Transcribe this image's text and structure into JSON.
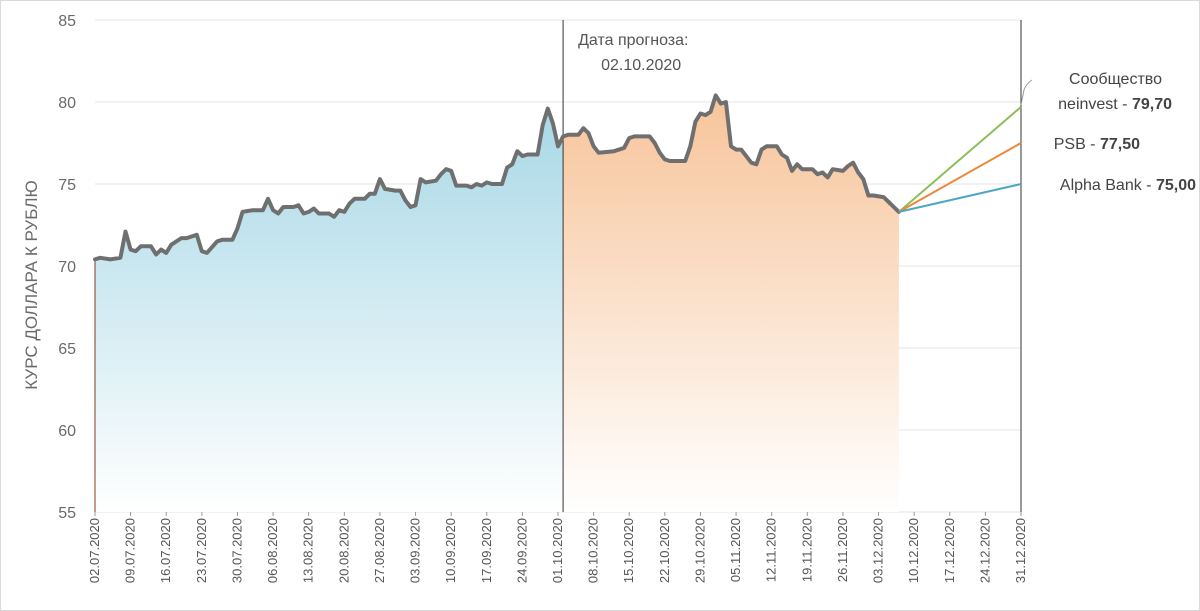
{
  "chart_data": {
    "type": "line",
    "ylabel": "КУРС ДОЛЛАРА К РУБЛЮ",
    "ylim": [
      55,
      85
    ],
    "yticks": [
      "55",
      "60",
      "65",
      "70",
      "75",
      "80",
      "85"
    ],
    "grid": "horizontal",
    "x_tick_labels": [
      "02.07.2020",
      "09.07.2020",
      "16.07.2020",
      "23.07.2020",
      "30.07.2020",
      "06.08.2020",
      "13.08.2020",
      "20.08.2020",
      "27.08.2020",
      "03.09.2020",
      "10.09.2020",
      "17.09.2020",
      "24.09.2020",
      "01.10.2020",
      "08.10.2020",
      "15.10.2020",
      "22.10.2020",
      "29.10.2020",
      "05.11.2020",
      "12.11.2020",
      "19.11.2020",
      "26.11.2020",
      "03.12.2020",
      "10.12.2020",
      "17.12.2020",
      "24.12.2020",
      "31.12.2020"
    ],
    "forecast_annotation": {
      "line1": "Дата прогноза:",
      "line2": "02.10.2020",
      "date": "02.10.2020"
    },
    "colors": {
      "history_line": "#6f6f6f",
      "before_fill_top": "#a8d8e6",
      "after_fill_top": "#f7c49a",
      "community": "#8cbf5a",
      "psb": "#e8893b",
      "alpha": "#4ea7c2"
    },
    "series": [
      {
        "name": "history",
        "points": [
          [
            "02.07.2020",
            70.4
          ],
          [
            "03.07.2020",
            70.5
          ],
          [
            "05.07.2020",
            70.4
          ],
          [
            "07.07.2020",
            70.5
          ],
          [
            "08.07.2020",
            72.1
          ],
          [
            "09.07.2020",
            71.0
          ],
          [
            "10.07.2020",
            70.9
          ],
          [
            "11.07.2020",
            71.2
          ],
          [
            "13.07.2020",
            71.2
          ],
          [
            "14.07.2020",
            70.7
          ],
          [
            "15.07.2020",
            71.0
          ],
          [
            "16.07.2020",
            70.8
          ],
          [
            "17.07.2020",
            71.3
          ],
          [
            "19.07.2020",
            71.7
          ],
          [
            "20.07.2020",
            71.7
          ],
          [
            "22.07.2020",
            71.9
          ],
          [
            "23.07.2020",
            70.9
          ],
          [
            "24.07.2020",
            70.8
          ],
          [
            "26.07.2020",
            71.5
          ],
          [
            "27.07.2020",
            71.6
          ],
          [
            "29.07.2020",
            71.6
          ],
          [
            "30.07.2020",
            72.3
          ],
          [
            "31.07.2020",
            73.3
          ],
          [
            "02.08.2020",
            73.4
          ],
          [
            "04.08.2020",
            73.4
          ],
          [
            "05.08.2020",
            74.1
          ],
          [
            "06.08.2020",
            73.4
          ],
          [
            "07.08.2020",
            73.2
          ],
          [
            "08.08.2020",
            73.6
          ],
          [
            "10.08.2020",
            73.6
          ],
          [
            "11.08.2020",
            73.7
          ],
          [
            "12.08.2020",
            73.2
          ],
          [
            "13.08.2020",
            73.3
          ],
          [
            "14.08.2020",
            73.5
          ],
          [
            "15.08.2020",
            73.2
          ],
          [
            "17.08.2020",
            73.2
          ],
          [
            "18.08.2020",
            73.0
          ],
          [
            "19.08.2020",
            73.4
          ],
          [
            "20.08.2020",
            73.3
          ],
          [
            "21.08.2020",
            73.8
          ],
          [
            "22.08.2020",
            74.1
          ],
          [
            "24.08.2020",
            74.1
          ],
          [
            "25.08.2020",
            74.4
          ],
          [
            "26.08.2020",
            74.4
          ],
          [
            "27.08.2020",
            75.3
          ],
          [
            "28.08.2020",
            74.7
          ],
          [
            "30.08.2020",
            74.6
          ],
          [
            "31.08.2020",
            74.6
          ],
          [
            "01.09.2020",
            74.0
          ],
          [
            "02.09.2020",
            73.6
          ],
          [
            "03.09.2020",
            73.7
          ],
          [
            "04.09.2020",
            75.3
          ],
          [
            "05.09.2020",
            75.1
          ],
          [
            "07.09.2020",
            75.2
          ],
          [
            "08.09.2020",
            75.6
          ],
          [
            "09.09.2020",
            75.9
          ],
          [
            "10.09.2020",
            75.8
          ],
          [
            "11.09.2020",
            74.9
          ],
          [
            "13.09.2020",
            74.9
          ],
          [
            "14.09.2020",
            74.8
          ],
          [
            "15.09.2020",
            75.0
          ],
          [
            "16.09.2020",
            74.9
          ],
          [
            "17.09.2020",
            75.1
          ],
          [
            "18.09.2020",
            75.0
          ],
          [
            "20.09.2020",
            75.0
          ],
          [
            "21.09.2020",
            76.0
          ],
          [
            "22.09.2020",
            76.2
          ],
          [
            "23.09.2020",
            77.0
          ],
          [
            "24.09.2020",
            76.7
          ],
          [
            "25.09.2020",
            76.8
          ],
          [
            "26.09.2020",
            76.8
          ],
          [
            "27.09.2020",
            76.8
          ],
          [
            "28.09.2020",
            78.6
          ],
          [
            "29.09.2020",
            79.6
          ],
          [
            "30.09.2020",
            78.7
          ],
          [
            "01.10.2020",
            77.3
          ],
          [
            "02.10.2020",
            77.9
          ],
          [
            "03.10.2020",
            78.0
          ],
          [
            "05.10.2020",
            78.0
          ],
          [
            "06.10.2020",
            78.4
          ],
          [
            "07.10.2020",
            78.1
          ],
          [
            "08.10.2020",
            77.3
          ],
          [
            "09.10.2020",
            76.9
          ],
          [
            "12.10.2020",
            77.0
          ],
          [
            "14.10.2020",
            77.2
          ],
          [
            "15.10.2020",
            77.8
          ],
          [
            "16.10.2020",
            77.9
          ],
          [
            "19.10.2020",
            77.9
          ],
          [
            "20.10.2020",
            77.5
          ],
          [
            "21.10.2020",
            76.9
          ],
          [
            "22.10.2020",
            76.5
          ],
          [
            "23.10.2020",
            76.4
          ],
          [
            "26.10.2020",
            76.4
          ],
          [
            "27.10.2020",
            77.3
          ],
          [
            "28.10.2020",
            78.8
          ],
          [
            "29.10.2020",
            79.3
          ],
          [
            "30.10.2020",
            79.2
          ],
          [
            "31.10.2020",
            79.4
          ],
          [
            "01.11.2020",
            80.4
          ],
          [
            "02.11.2020",
            79.9
          ],
          [
            "03.11.2020",
            80.0
          ],
          [
            "04.11.2020",
            77.3
          ],
          [
            "05.11.2020",
            77.1
          ],
          [
            "06.11.2020",
            77.1
          ],
          [
            "08.11.2020",
            76.3
          ],
          [
            "09.11.2020",
            76.2
          ],
          [
            "10.11.2020",
            77.1
          ],
          [
            "11.11.2020",
            77.3
          ],
          [
            "13.11.2020",
            77.3
          ],
          [
            "14.11.2020",
            76.8
          ],
          [
            "15.11.2020",
            76.6
          ],
          [
            "16.11.2020",
            75.8
          ],
          [
            "17.11.2020",
            76.2
          ],
          [
            "18.11.2020",
            75.9
          ],
          [
            "20.11.2020",
            75.9
          ],
          [
            "21.11.2020",
            75.6
          ],
          [
            "22.11.2020",
            75.7
          ],
          [
            "23.11.2020",
            75.4
          ],
          [
            "24.11.2020",
            75.9
          ],
          [
            "26.11.2020",
            75.8
          ],
          [
            "27.11.2020",
            76.1
          ],
          [
            "28.11.2020",
            76.3
          ],
          [
            "29.11.2020",
            75.7
          ],
          [
            "30.11.2020",
            75.3
          ],
          [
            "01.12.2020",
            74.3
          ],
          [
            "02.12.2020",
            74.3
          ],
          [
            "04.12.2020",
            74.2
          ],
          [
            "05.12.2020",
            73.9
          ],
          [
            "06.12.2020",
            73.6
          ],
          [
            "07.12.2020",
            73.3
          ]
        ]
      },
      {
        "name": "Сообщество neinvest",
        "label_line1": "Сообщество",
        "label_line2_prefix": "neinvest - ",
        "label_value": "79,70",
        "points": [
          [
            "07.12.2020",
            73.3
          ],
          [
            "31.12.2020",
            79.7
          ]
        ]
      },
      {
        "name": "PSB",
        "label_prefix": "PSB - ",
        "label_value": "77,50",
        "points": [
          [
            "07.12.2020",
            73.3
          ],
          [
            "31.12.2020",
            77.5
          ]
        ]
      },
      {
        "name": "Alpha Bank",
        "label_prefix": "Alpha Bank - ",
        "label_value": "75,00",
        "points": [
          [
            "07.12.2020",
            73.3
          ],
          [
            "31.12.2020",
            75.0
          ]
        ]
      }
    ]
  }
}
